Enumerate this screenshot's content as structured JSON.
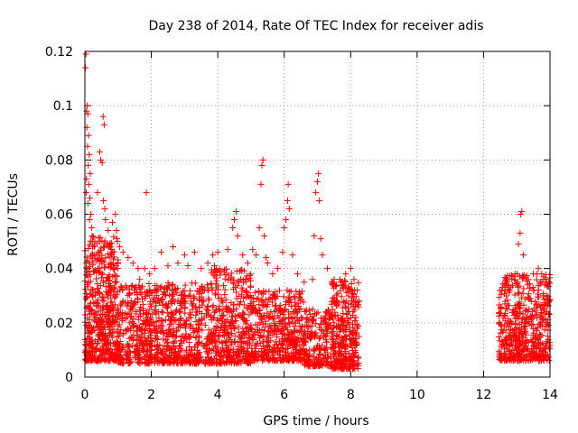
{
  "chart_data": {
    "type": "scatter",
    "title": "Day 238 of 2014, Rate Of TEC Index for receiver adis",
    "xlabel": "GPS time / hours",
    "ylabel": "ROTI / TECUs",
    "xlim": [
      0,
      14
    ],
    "ylim": [
      0,
      0.12
    ],
    "xticks": [
      0,
      2,
      4,
      6,
      8,
      10,
      12,
      14
    ],
    "xtick_labels": [
      "0",
      "2",
      "4",
      "6",
      "8",
      "10",
      "12",
      "14"
    ],
    "yticks": [
      0,
      0.02,
      0.04,
      0.06,
      0.08,
      0.1,
      0.12
    ],
    "ytick_labels": [
      "0",
      "0.02",
      "0.04",
      "0.06",
      "0.08",
      "0.1",
      "0.12"
    ],
    "grid": true,
    "marker": "+",
    "marker_color": "#ff0000",
    "series": [
      {
        "name": "ROTI",
        "points": [
          [
            0.02,
            0.114
          ],
          [
            0.03,
            0.119
          ],
          [
            0.05,
            0.098
          ],
          [
            0.06,
            0.092
          ],
          [
            0.08,
            0.085
          ],
          [
            0.1,
            0.078
          ],
          [
            0.12,
            0.071
          ],
          [
            0.15,
            0.066
          ],
          [
            0.18,
            0.06
          ],
          [
            0.2,
            0.055
          ],
          [
            0.07,
            0.1
          ],
          [
            0.09,
            0.097
          ],
          [
            0.11,
            0.089
          ],
          [
            0.13,
            0.082
          ],
          [
            0.16,
            0.075
          ],
          [
            0.05,
            0.073
          ],
          [
            0.04,
            0.068
          ],
          [
            0.09,
            0.064
          ],
          [
            0.14,
            0.058
          ],
          [
            0.22,
            0.052
          ],
          [
            0.3,
            0.05
          ],
          [
            0.35,
            0.045
          ],
          [
            0.38,
            0.068
          ],
          [
            0.45,
            0.083
          ],
          [
            0.48,
            0.08
          ],
          [
            0.52,
            0.079
          ],
          [
            0.55,
            0.096
          ],
          [
            0.58,
            0.093
          ],
          [
            0.56,
            0.065
          ],
          [
            0.6,
            0.062
          ],
          [
            0.62,
            0.058
          ],
          [
            0.7,
            0.054
          ],
          [
            0.75,
            0.049
          ],
          [
            0.83,
            0.057
          ],
          [
            0.92,
            0.06
          ],
          [
            0.95,
            0.054
          ],
          [
            0.98,
            0.05
          ],
          [
            1.05,
            0.048
          ],
          [
            1.15,
            0.046
          ],
          [
            1.3,
            0.044
          ],
          [
            1.45,
            0.042
          ],
          [
            1.6,
            0.04
          ],
          [
            1.65,
            0.036
          ],
          [
            1.85,
            0.068
          ],
          [
            1.8,
            0.04
          ],
          [
            1.95,
            0.038
          ],
          [
            2.1,
            0.04
          ],
          [
            2.3,
            0.046
          ],
          [
            2.5,
            0.041
          ],
          [
            2.65,
            0.048
          ],
          [
            2.8,
            0.042
          ],
          [
            3.0,
            0.045
          ],
          [
            3.1,
            0.041
          ],
          [
            3.3,
            0.046
          ],
          [
            3.5,
            0.04
          ],
          [
            3.7,
            0.042
          ],
          [
            3.85,
            0.045
          ],
          [
            3.9,
            0.041
          ],
          [
            4.0,
            0.046
          ],
          [
            4.1,
            0.039
          ],
          [
            4.3,
            0.047
          ],
          [
            4.45,
            0.055
          ],
          [
            4.5,
            0.058
          ],
          [
            4.55,
            0.061
          ],
          [
            4.6,
            0.052
          ],
          [
            4.75,
            0.045
          ],
          [
            4.9,
            0.042
          ],
          [
            5.05,
            0.047
          ],
          [
            5.15,
            0.045
          ],
          [
            5.25,
            0.055
          ],
          [
            5.3,
            0.071
          ],
          [
            5.33,
            0.078
          ],
          [
            5.36,
            0.08
          ],
          [
            5.4,
            0.052
          ],
          [
            5.45,
            0.044
          ],
          [
            5.5,
            0.042
          ],
          [
            5.65,
            0.038
          ],
          [
            5.8,
            0.04
          ],
          [
            5.95,
            0.046
          ],
          [
            6.0,
            0.055
          ],
          [
            6.05,
            0.058
          ],
          [
            6.1,
            0.065
          ],
          [
            6.12,
            0.071
          ],
          [
            6.15,
            0.062
          ],
          [
            6.25,
            0.045
          ],
          [
            6.4,
            0.038
          ],
          [
            6.6,
            0.035
          ],
          [
            6.85,
            0.036
          ],
          [
            6.9,
            0.052
          ],
          [
            6.95,
            0.068
          ],
          [
            7.0,
            0.072
          ],
          [
            7.03,
            0.075
          ],
          [
            7.06,
            0.065
          ],
          [
            7.1,
            0.051
          ],
          [
            7.15,
            0.045
          ],
          [
            7.3,
            0.04
          ],
          [
            7.5,
            0.036
          ],
          [
            7.7,
            0.035
          ],
          [
            7.85,
            0.038
          ],
          [
            8.0,
            0.04
          ],
          [
            8.1,
            0.036
          ],
          [
            8.2,
            0.032
          ],
          [
            8.25,
            0.028
          ],
          [
            12.55,
            0.032
          ],
          [
            12.7,
            0.034
          ],
          [
            12.85,
            0.036
          ],
          [
            12.95,
            0.038
          ],
          [
            13.05,
            0.049
          ],
          [
            13.1,
            0.053
          ],
          [
            13.12,
            0.06
          ],
          [
            13.15,
            0.061
          ],
          [
            13.2,
            0.045
          ],
          [
            13.35,
            0.036
          ],
          [
            13.5,
            0.038
          ],
          [
            13.65,
            0.04
          ],
          [
            13.75,
            0.038
          ],
          [
            13.85,
            0.034
          ],
          [
            13.9,
            0.03
          ]
        ]
      }
    ],
    "bulk_bands": [
      {
        "x_range": [
          0,
          1
        ],
        "y_range": [
          0.006,
          0.052
        ],
        "count": 520
      },
      {
        "x_range": [
          1,
          3.8
        ],
        "y_range": [
          0.005,
          0.035
        ],
        "count": 820
      },
      {
        "x_range": [
          3.8,
          5
        ],
        "y_range": [
          0.005,
          0.04
        ],
        "count": 400
      },
      {
        "x_range": [
          5,
          6.6
        ],
        "y_range": [
          0.006,
          0.032
        ],
        "count": 480
      },
      {
        "x_range": [
          6.6,
          7.4
        ],
        "y_range": [
          0.004,
          0.025
        ],
        "count": 200
      },
      {
        "x_range": [
          7.4,
          8.25
        ],
        "y_range": [
          0.003,
          0.036
        ],
        "count": 340
      },
      {
        "x_range": [
          12.45,
          14
        ],
        "y_range": [
          0.006,
          0.038
        ],
        "count": 520
      }
    ]
  }
}
